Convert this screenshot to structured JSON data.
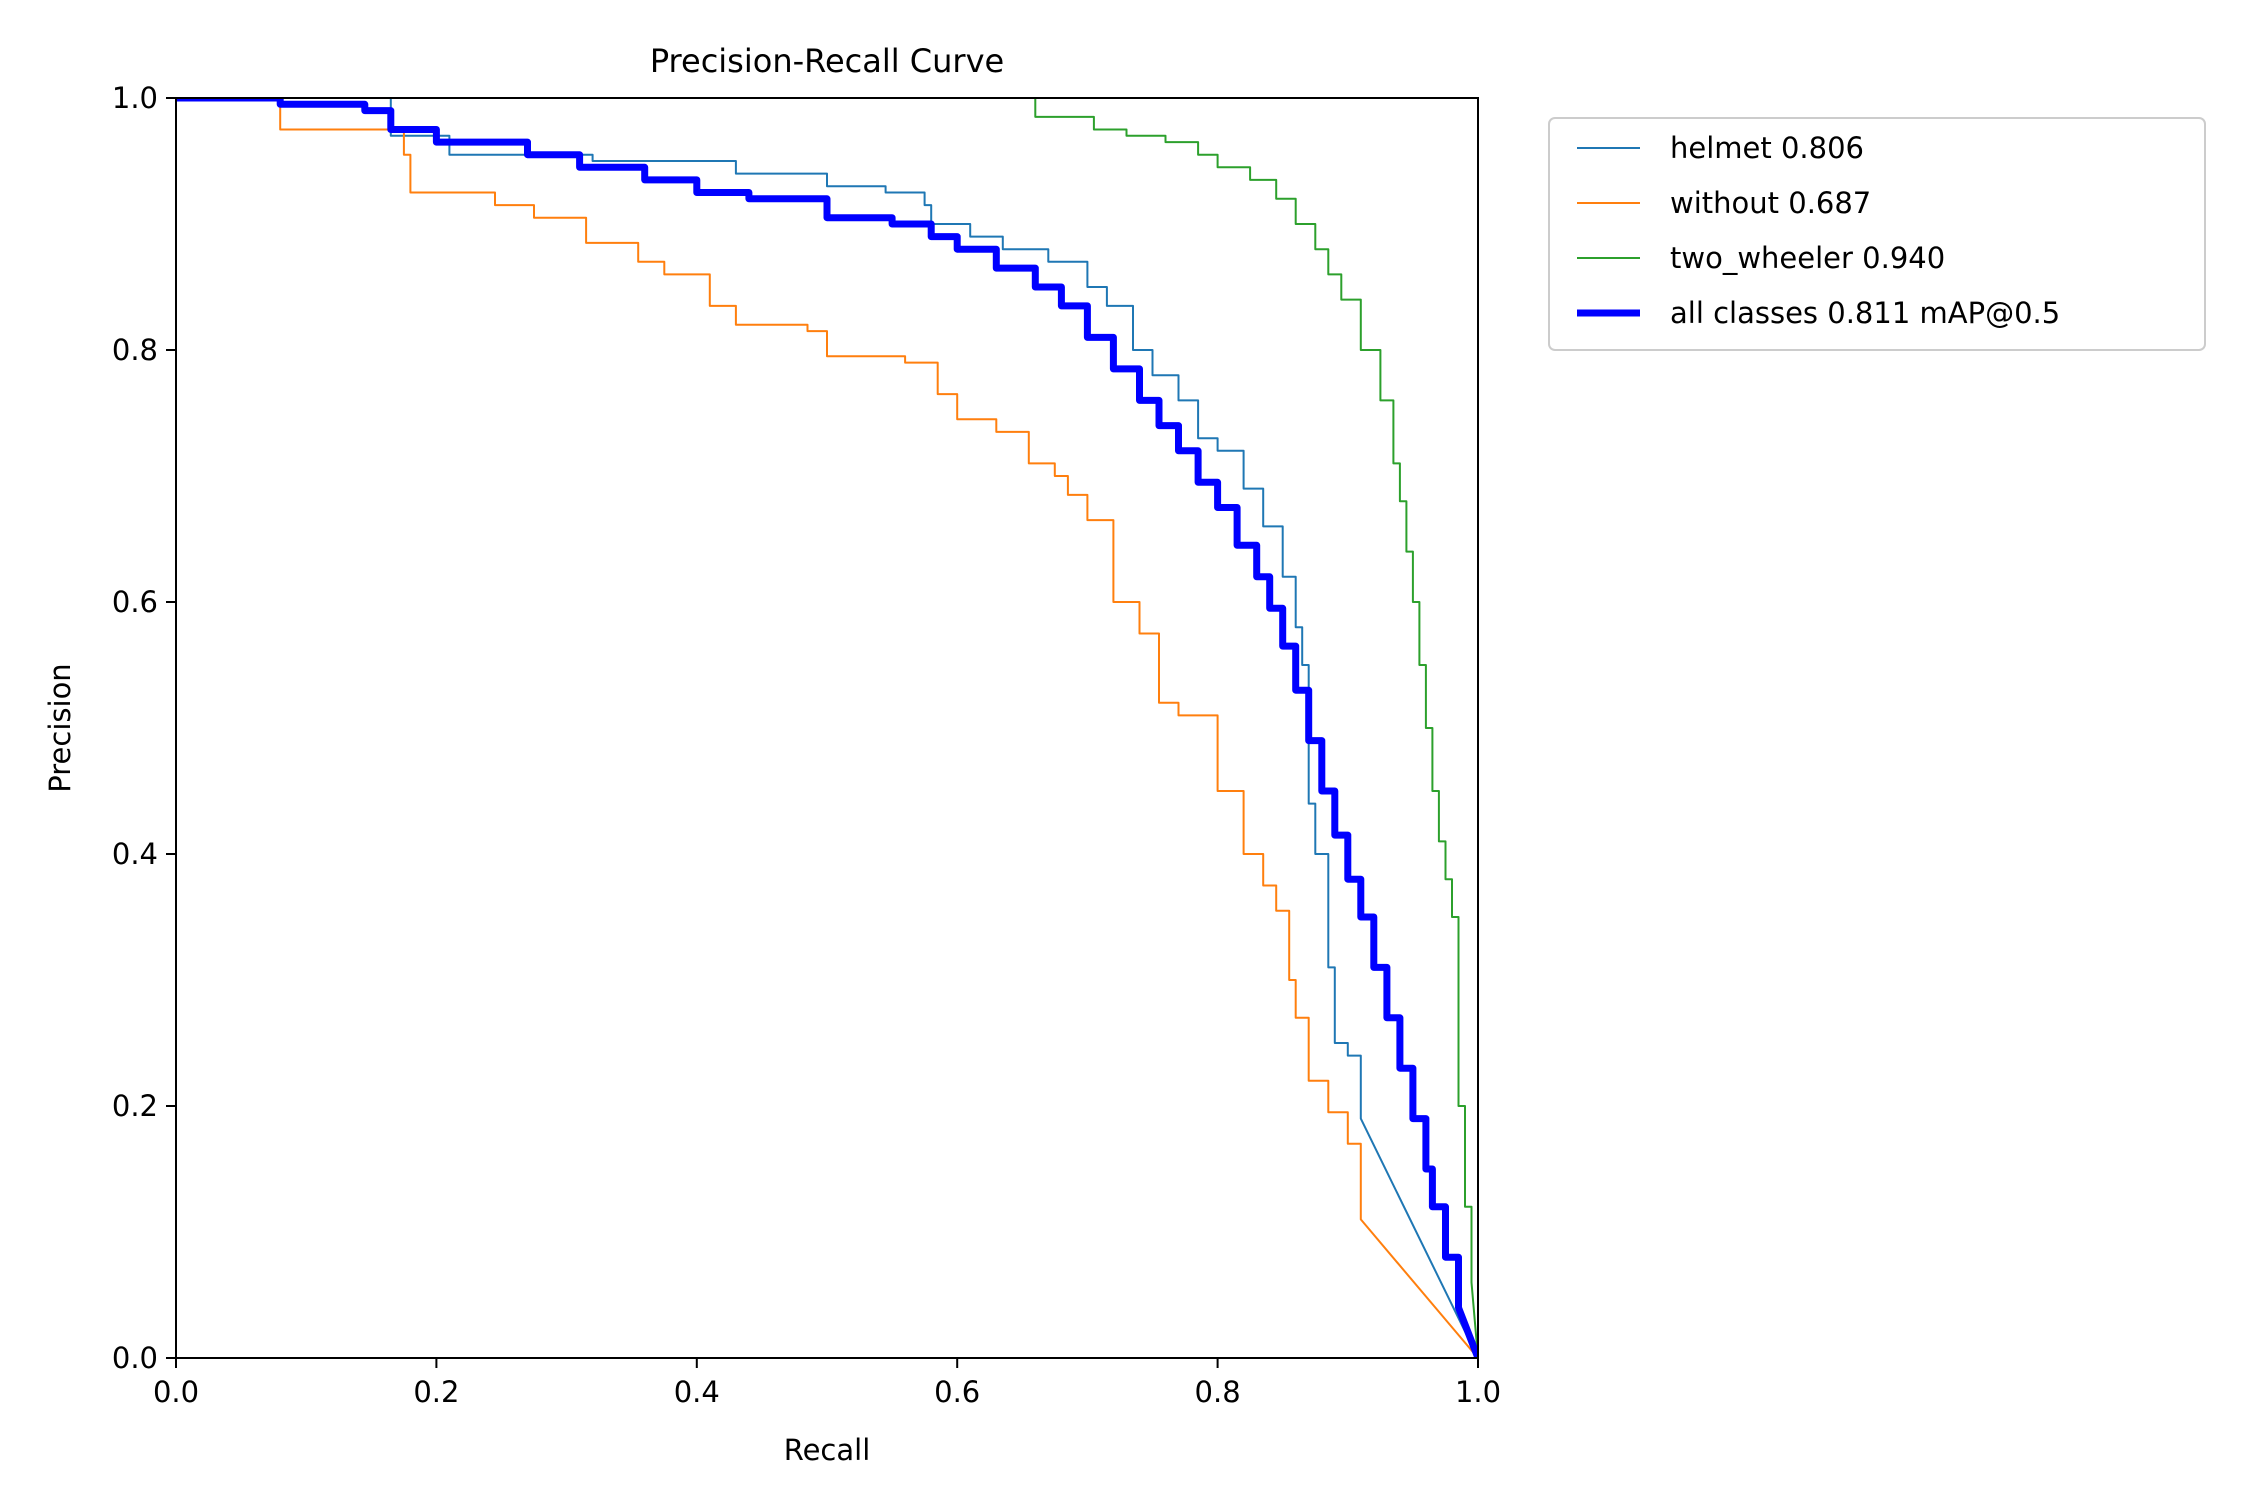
{
  "chart_data": {
    "type": "line",
    "title": "Precision-Recall Curve",
    "xlabel": "Recall",
    "ylabel": "Precision",
    "xlim": [
      0.0,
      1.0
    ],
    "ylim": [
      0.0,
      1.0
    ],
    "xticks": [
      "0.0",
      "0.2",
      "0.4",
      "0.6",
      "0.8",
      "1.0"
    ],
    "yticks": [
      "0.0",
      "0.2",
      "0.4",
      "0.6",
      "0.8",
      "1.0"
    ],
    "grid": false,
    "legend_position": "outside-upper-right",
    "series": [
      {
        "name": "helmet 0.806",
        "color": "#1f77b4",
        "style": "thin",
        "x": [
          0.0,
          0.15,
          0.165,
          0.21,
          0.32,
          0.43,
          0.5,
          0.545,
          0.575,
          0.58,
          0.61,
          0.635,
          0.67,
          0.7,
          0.715,
          0.735,
          0.75,
          0.77,
          0.785,
          0.8,
          0.82,
          0.835,
          0.85,
          0.86,
          0.865,
          0.87,
          0.875,
          0.885,
          0.89,
          0.9,
          0.91,
          1.0
        ],
        "y": [
          1.0,
          1.0,
          0.97,
          0.955,
          0.95,
          0.94,
          0.93,
          0.925,
          0.915,
          0.9,
          0.89,
          0.88,
          0.87,
          0.85,
          0.835,
          0.8,
          0.78,
          0.76,
          0.73,
          0.72,
          0.69,
          0.66,
          0.62,
          0.58,
          0.55,
          0.44,
          0.4,
          0.31,
          0.25,
          0.24,
          0.19,
          0.0
        ]
      },
      {
        "name": "without 0.687",
        "color": "#ff7f0e",
        "style": "thin",
        "x": [
          0.0,
          0.075,
          0.08,
          0.16,
          0.175,
          0.18,
          0.245,
          0.275,
          0.315,
          0.355,
          0.375,
          0.41,
          0.43,
          0.485,
          0.5,
          0.56,
          0.585,
          0.6,
          0.63,
          0.655,
          0.675,
          0.685,
          0.7,
          0.72,
          0.74,
          0.755,
          0.77,
          0.8,
          0.82,
          0.835,
          0.845,
          0.855,
          0.86,
          0.87,
          0.885,
          0.9,
          0.91,
          1.0
        ],
        "y": [
          1.0,
          1.0,
          0.975,
          0.975,
          0.955,
          0.925,
          0.915,
          0.905,
          0.885,
          0.87,
          0.86,
          0.835,
          0.82,
          0.815,
          0.795,
          0.79,
          0.765,
          0.745,
          0.735,
          0.71,
          0.7,
          0.685,
          0.665,
          0.6,
          0.575,
          0.52,
          0.51,
          0.45,
          0.4,
          0.375,
          0.355,
          0.3,
          0.27,
          0.22,
          0.195,
          0.17,
          0.11,
          0.0
        ]
      },
      {
        "name": "two_wheeler 0.940",
        "color": "#2ca02c",
        "style": "thin",
        "x": [
          0.0,
          0.6,
          0.66,
          0.705,
          0.73,
          0.76,
          0.785,
          0.8,
          0.825,
          0.845,
          0.86,
          0.875,
          0.885,
          0.895,
          0.91,
          0.925,
          0.935,
          0.94,
          0.945,
          0.95,
          0.955,
          0.96,
          0.965,
          0.97,
          0.975,
          0.98,
          0.985,
          0.99,
          0.995,
          1.0
        ],
        "y": [
          1.0,
          1.0,
          0.985,
          0.975,
          0.97,
          0.965,
          0.955,
          0.945,
          0.935,
          0.92,
          0.9,
          0.88,
          0.86,
          0.84,
          0.8,
          0.76,
          0.71,
          0.68,
          0.64,
          0.6,
          0.55,
          0.5,
          0.45,
          0.41,
          0.38,
          0.35,
          0.2,
          0.12,
          0.06,
          0.0
        ]
      },
      {
        "name": "all classes 0.811 mAP@0.5",
        "color": "#0000ff",
        "style": "thick",
        "x": [
          0.0,
          0.08,
          0.145,
          0.165,
          0.2,
          0.27,
          0.31,
          0.36,
          0.4,
          0.44,
          0.5,
          0.55,
          0.58,
          0.6,
          0.63,
          0.66,
          0.68,
          0.7,
          0.72,
          0.74,
          0.755,
          0.77,
          0.785,
          0.8,
          0.815,
          0.83,
          0.84,
          0.85,
          0.86,
          0.87,
          0.88,
          0.89,
          0.9,
          0.91,
          0.92,
          0.93,
          0.94,
          0.95,
          0.96,
          0.965,
          0.975,
          0.985,
          1.0
        ],
        "y": [
          1.0,
          0.995,
          0.99,
          0.975,
          0.965,
          0.955,
          0.945,
          0.935,
          0.925,
          0.92,
          0.905,
          0.9,
          0.89,
          0.88,
          0.865,
          0.85,
          0.835,
          0.81,
          0.785,
          0.76,
          0.74,
          0.72,
          0.695,
          0.675,
          0.645,
          0.62,
          0.595,
          0.565,
          0.53,
          0.49,
          0.45,
          0.415,
          0.38,
          0.35,
          0.31,
          0.27,
          0.23,
          0.19,
          0.15,
          0.12,
          0.08,
          0.04,
          0.0
        ]
      }
    ]
  }
}
